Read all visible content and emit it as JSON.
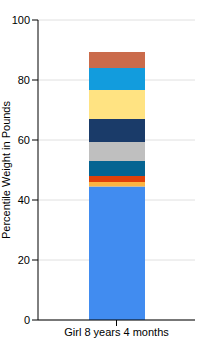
{
  "chart_data": {
    "type": "bar",
    "stacked": true,
    "categories": [
      "Girl 8 years 4 months"
    ],
    "series": [
      {
        "color": "#418cf0",
        "values": [
          44.5
        ]
      },
      {
        "color": "#fcb441",
        "values": [
          1.5
        ]
      },
      {
        "color": "#e0400a",
        "values": [
          2
        ]
      },
      {
        "color": "#056492",
        "values": [
          5
        ]
      },
      {
        "color": "#bfbfbf",
        "values": [
          6.3
        ]
      },
      {
        "color": "#1a3b69",
        "values": [
          7.7
        ]
      },
      {
        "color": "#ffe382",
        "values": [
          9.7
        ]
      },
      {
        "color": "#129cdd",
        "values": [
          7.3
        ]
      },
      {
        "color": "#ca6b4b",
        "values": [
          5.3
        ]
      }
    ],
    "ylabel": "Percentile Weight in Pounds",
    "ylim": [
      0,
      100
    ],
    "yticks": [
      0,
      20,
      40,
      60,
      80,
      100
    ],
    "grid": true
  }
}
